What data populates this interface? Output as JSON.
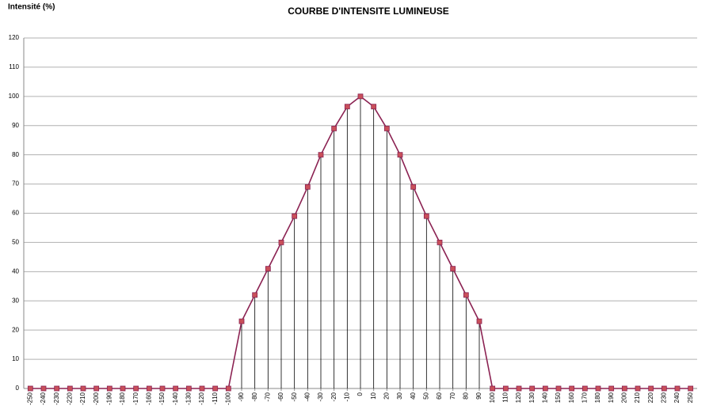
{
  "chart_data": {
    "type": "line",
    "title": "COURBE D'INTENSITE LUMINEUSE",
    "y_label": "Intensité (%)",
    "x": [
      -250,
      -240,
      -230,
      -220,
      -210,
      -200,
      -190,
      -180,
      -170,
      -160,
      -150,
      -140,
      -130,
      -120,
      -110,
      -100,
      -90,
      -80,
      -70,
      -60,
      -50,
      -40,
      -30,
      -20,
      -10,
      0,
      10,
      20,
      30,
      40,
      50,
      60,
      70,
      80,
      90,
      100,
      110,
      120,
      130,
      140,
      150,
      160,
      170,
      180,
      190,
      200,
      210,
      220,
      230,
      240,
      250
    ],
    "values": [
      0,
      0,
      0,
      0,
      0,
      0,
      0,
      0,
      0,
      0,
      0,
      0,
      0,
      0,
      0,
      0,
      23,
      32,
      41,
      50,
      59,
      69,
      80,
      89,
      96.5,
      100,
      96.5,
      89,
      80,
      69,
      59,
      50,
      41,
      32,
      23,
      0,
      0,
      0,
      0,
      0,
      0,
      0,
      0,
      0,
      0,
      0,
      0,
      0,
      0,
      0,
      0
    ],
    "color": "#8b2252",
    "marker_color": "#c9505a",
    "drop_lines": true,
    "xlim": [
      -255,
      255
    ],
    "xticks": [
      -250,
      -240,
      -230,
      -220,
      -210,
      -200,
      -190,
      -180,
      -170,
      -160,
      -150,
      -140,
      -130,
      -120,
      -110,
      -100,
      -90,
      -80,
      -70,
      -60,
      -50,
      -40,
      -30,
      -20,
      -10,
      0,
      10,
      20,
      30,
      40,
      50,
      60,
      70,
      80,
      90,
      100,
      110,
      120,
      130,
      140,
      150,
      160,
      170,
      180,
      190,
      200,
      210,
      220,
      230,
      240,
      250
    ],
    "ylim": [
      0,
      120
    ],
    "yticks": [
      0,
      10,
      20,
      30,
      40,
      50,
      60,
      70,
      80,
      90,
      100,
      110,
      120
    ],
    "grid": true
  }
}
